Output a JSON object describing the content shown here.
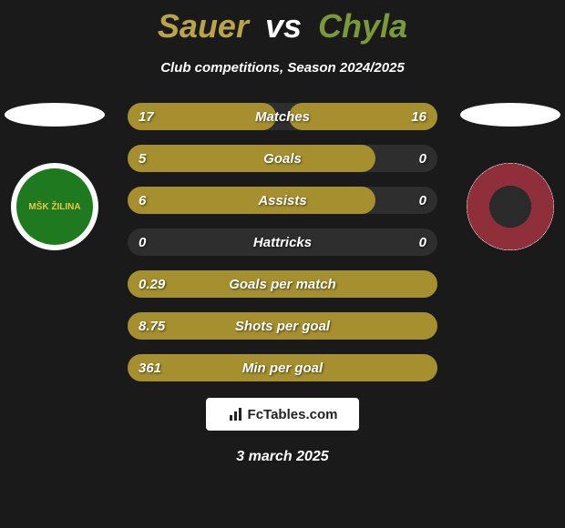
{
  "title": {
    "player1": "Sauer",
    "vs": "vs",
    "player2": "Chyla",
    "p1_color": "#b9a44a",
    "p2_color": "#7a9a3a"
  },
  "subtitle": "Club competitions, Season 2024/2025",
  "crests": {
    "left_text": "MŠK ŽILINA",
    "right_text": ""
  },
  "bars": {
    "track_color": "#2e2e2e",
    "fill_color": "#a58f2e",
    "rows": [
      {
        "label": "Matches",
        "left_val": "17",
        "right_val": "16",
        "left_pct": 48,
        "right_pct": 48
      },
      {
        "label": "Goals",
        "left_val": "5",
        "right_val": "0",
        "left_pct": 80,
        "right_pct": 0
      },
      {
        "label": "Assists",
        "left_val": "6",
        "right_val": "0",
        "left_pct": 80,
        "right_pct": 0
      },
      {
        "label": "Hattricks",
        "left_val": "0",
        "right_val": "0",
        "left_pct": 0,
        "right_pct": 0
      },
      {
        "label": "Goals per match",
        "left_val": "0.29",
        "right_val": "",
        "left_pct": 100,
        "right_pct": 0
      },
      {
        "label": "Shots per goal",
        "left_val": "8.75",
        "right_val": "",
        "left_pct": 100,
        "right_pct": 0
      },
      {
        "label": "Min per goal",
        "left_val": "361",
        "right_val": "",
        "left_pct": 100,
        "right_pct": 0
      }
    ]
  },
  "footer_badge": "FcTables.com",
  "date": "3 march 2025"
}
